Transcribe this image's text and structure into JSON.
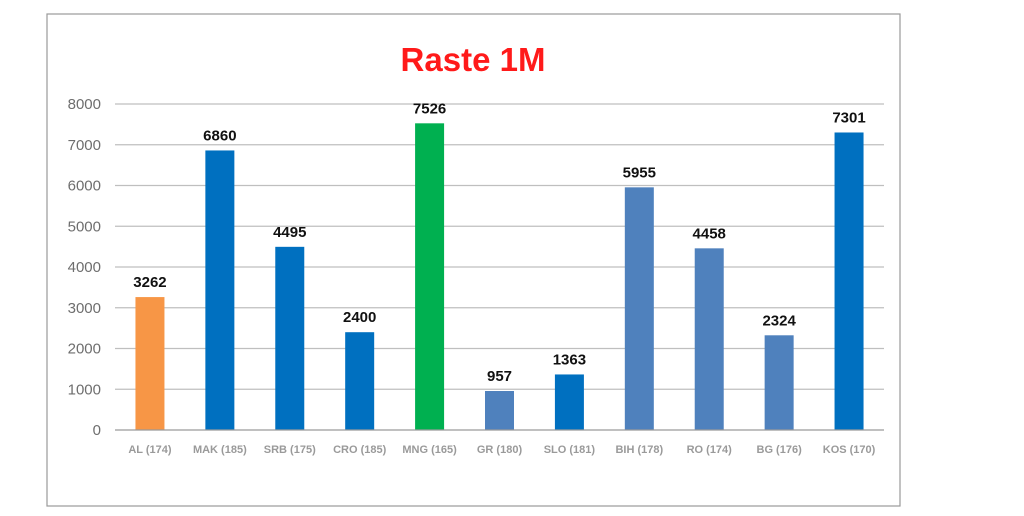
{
  "chart_data": {
    "type": "bar",
    "title": "Raste 1M",
    "xlabel": "",
    "ylabel": "",
    "ylim": [
      0,
      8000
    ],
    "yticks": [
      0,
      1000,
      2000,
      3000,
      4000,
      5000,
      6000,
      7000,
      8000
    ],
    "grid": true,
    "legend": "none",
    "categories": [
      "AL (174)",
      "MAK (185)",
      "SRB (175)",
      "CRO (185)",
      "MNG (165)",
      "GR (180)",
      "SLO (181)",
      "BIH (178)",
      "RO (174)",
      "BG (176)",
      "KOS (170)"
    ],
    "values": [
      3262,
      6860,
      4495,
      2400,
      7526,
      957,
      1363,
      5955,
      4458,
      2324,
      7301
    ],
    "data_labels": [
      "3262",
      "6860",
      "4495",
      "2400",
      "7526",
      "957",
      "1363",
      "5955",
      "4458",
      "2324",
      "7301"
    ],
    "colors": [
      "#f79646",
      "#0070c0",
      "#0070c0",
      "#0070c0",
      "#00b050",
      "#4f81bd",
      "#0070c0",
      "#4f81bd",
      "#4f81bd",
      "#4f81bd",
      "#0070c0"
    ]
  }
}
